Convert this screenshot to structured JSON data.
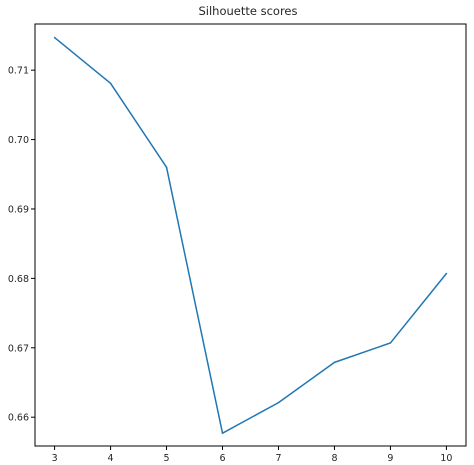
{
  "chart_data": {
    "type": "line",
    "title": "Silhouette scores",
    "xlabel": "",
    "ylabel": "",
    "x": [
      3,
      4,
      5,
      6,
      7,
      8,
      9,
      10
    ],
    "series": [
      {
        "values": [
          0.7147,
          0.7081,
          0.696,
          0.6577,
          0.6621,
          0.6679,
          0.6707,
          0.6807
        ]
      }
    ],
    "xticks": [
      3,
      4,
      5,
      6,
      7,
      8,
      9,
      10
    ],
    "xtick_labels": [
      "3",
      "4",
      "5",
      "6",
      "7",
      "8",
      "9",
      "10"
    ],
    "yticks": [
      0.66,
      0.67,
      0.68,
      0.69,
      0.7,
      0.71
    ],
    "ytick_labels": [
      "0.66",
      "0.67",
      "0.68",
      "0.69",
      "0.70",
      "0.71"
    ],
    "xlim": [
      2.65,
      10.35
    ],
    "ylim": [
      0.65585,
      0.71665
    ],
    "grid": false,
    "line_color": "#1f77b4"
  }
}
